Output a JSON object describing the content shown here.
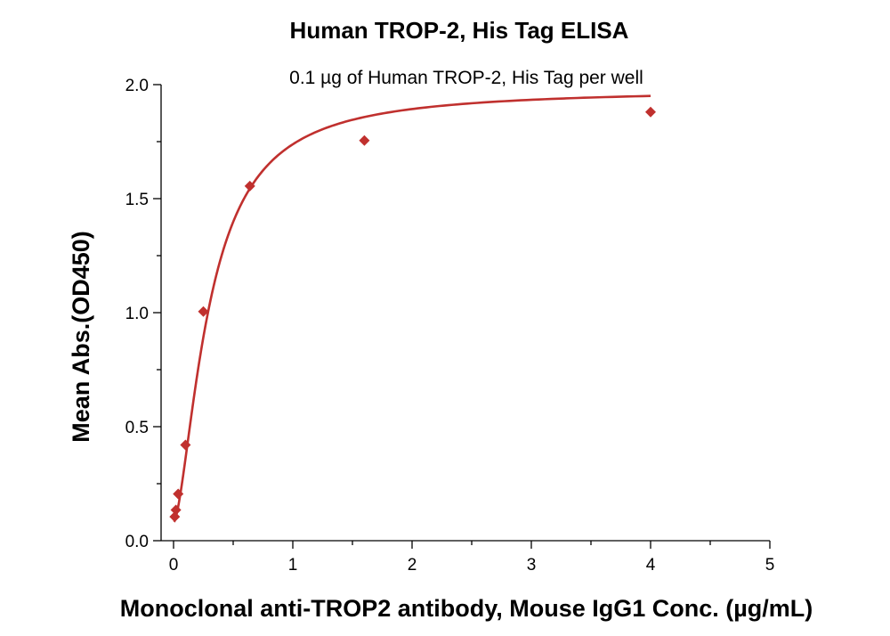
{
  "chart_data": {
    "type": "scatter",
    "title": "Human TROP-2, His Tag ELISA",
    "subtitle": "0.1 µg of Human TROP-2, His Tag per well",
    "xlabel": "Monoclonal anti-TROP2 antibody, Mouse IgG1 Conc. (µg/mL)",
    "ylabel": "Mean Abs.(OD450)",
    "xlim": [
      0,
      5
    ],
    "ylim": [
      0,
      2.0
    ],
    "x_ticks": [
      0,
      1,
      2,
      3,
      4,
      5
    ],
    "x_tick_labels": [
      "0",
      "1",
      "2",
      "3",
      "4",
      "5"
    ],
    "y_ticks": [
      0.0,
      0.5,
      1.0,
      1.5,
      2.0
    ],
    "y_tick_labels": [
      "0.0",
      "0.5",
      "1.0",
      "1.5",
      "2.0"
    ],
    "y_minor_ticks": [
      0.25,
      0.75,
      1.25,
      1.75
    ],
    "grid": false,
    "color": "#c0302e",
    "series": [
      {
        "marker": "diamond",
        "fit": "four-parameter logistic curve",
        "points": [
          {
            "x": 0.0098,
            "y": 0.105
          },
          {
            "x": 0.0195,
            "y": 0.135
          },
          {
            "x": 0.039,
            "y": 0.205
          },
          {
            "x": 0.1,
            "y": 0.42
          },
          {
            "x": 0.25,
            "y": 1.005
          },
          {
            "x": 0.64,
            "y": 1.555
          },
          {
            "x": 1.6,
            "y": 1.755
          },
          {
            "x": 4.0,
            "y": 1.88
          }
        ]
      }
    ]
  }
}
